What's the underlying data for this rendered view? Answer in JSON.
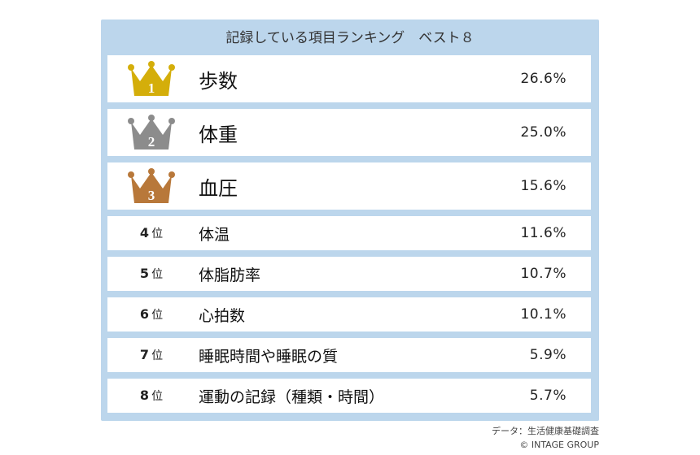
{
  "chart_data": {
    "type": "table",
    "title": "記録している項目ランキング　ベスト８",
    "rank_suffix": "位",
    "rows": [
      {
        "rank": "1",
        "item": "歩数",
        "value": "26.6%",
        "crown_color": "#d4ae0a"
      },
      {
        "rank": "2",
        "item": "体重",
        "value": "25.0%",
        "crown_color": "#8c8c8c"
      },
      {
        "rank": "3",
        "item": "血圧",
        "value": "15.6%",
        "crown_color": "#b8783a"
      },
      {
        "rank": "4",
        "item": "体温",
        "value": "11.6%"
      },
      {
        "rank": "5",
        "item": "体脂肪率",
        "value": "10.7%"
      },
      {
        "rank": "6",
        "item": "心拍数",
        "value": "10.1%"
      },
      {
        "rank": "7",
        "item": "睡眠時間や睡眠の質",
        "value": "5.9%"
      },
      {
        "rank": "8",
        "item": "運動の記録（種類・時間）",
        "value": "5.7%"
      }
    ]
  },
  "source": {
    "line1": "データ：生活健康基礎調査",
    "line2": "© INTAGE GROUP"
  }
}
